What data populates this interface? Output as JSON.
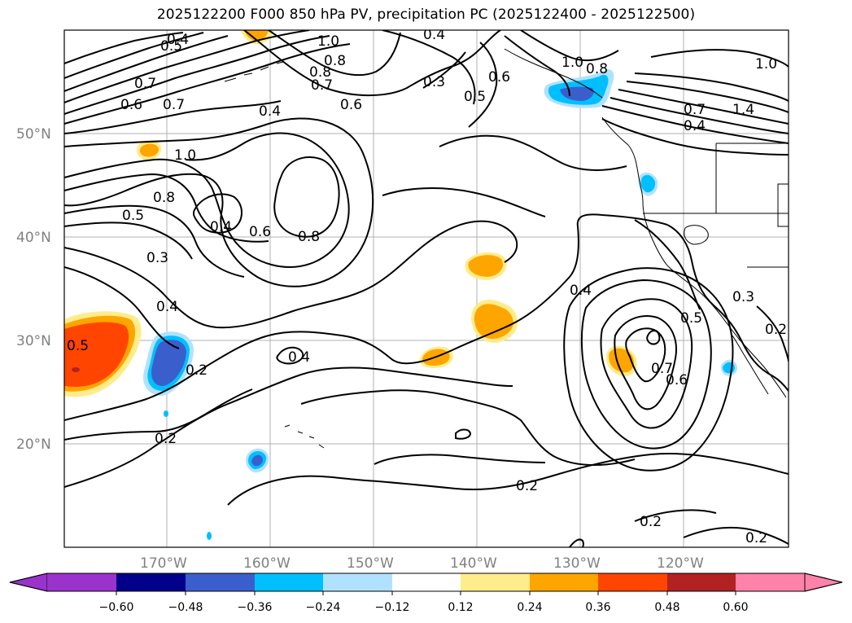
{
  "title": "2025122200 F000 850 hPa PV, precipitation PC (2025122400 - 2025122500)",
  "map": {
    "lon_range": [
      -180,
      -110
    ],
    "lat_range": [
      10,
      60
    ],
    "lat_ticks": [
      {
        "value": 50,
        "label": "50°N"
      },
      {
        "value": 40,
        "label": "40°N"
      },
      {
        "value": 30,
        "label": "30°N"
      },
      {
        "value": 20,
        "label": "20°N"
      }
    ],
    "lon_ticks": [
      {
        "value": -170,
        "label": "170°W"
      },
      {
        "value": -160,
        "label": "160°W"
      },
      {
        "value": -150,
        "label": "150°W"
      },
      {
        "value": -140,
        "label": "140°W"
      },
      {
        "value": -130,
        "label": "130°W"
      },
      {
        "value": -120,
        "label": "120°W"
      }
    ],
    "grid": true,
    "contour_labels": [
      "0.4",
      "0.5",
      "0.7",
      "0.6",
      "0.7",
      "1.0",
      "0.8",
      "0.8",
      "0.7",
      "0.4",
      "0.6",
      "0.4",
      "0.3",
      "0.5",
      "0.6",
      "1.0",
      "0.8",
      "1.0",
      "0.7",
      "1.4",
      "0.4",
      "1.0",
      "0.8",
      "0.5",
      "0.4",
      "0.6",
      "0.8",
      "0.3",
      "0.4",
      "0.5",
      "0.4",
      "0.4",
      "0.5",
      "0.3",
      "0.7",
      "0.6",
      "0.2",
      "0.2",
      "0.2",
      "0.2",
      "0.2",
      "0.2"
    ]
  },
  "colorbar": {
    "ticks": [
      "−0.60",
      "−0.48",
      "−0.36",
      "−0.24",
      "−0.12",
      "0.12",
      "0.24",
      "0.36",
      "0.48",
      "0.60"
    ],
    "colors": [
      "#9933cc",
      "#00008b",
      "#3a5fcd",
      "#00bfff",
      "#b0e2ff",
      "#ffffff",
      "#ffec8b",
      "#ffa500",
      "#ff4500",
      "#b22222",
      "#ff82ab"
    ]
  }
}
